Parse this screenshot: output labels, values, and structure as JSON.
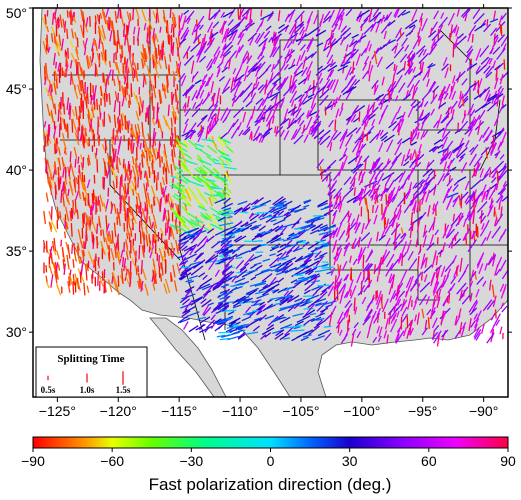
{
  "map": {
    "lon_range": [
      -127,
      -88
    ],
    "lat_range": [
      26,
      50
    ],
    "lon_ticks": [
      {
        "value": -125,
        "label": "−125°"
      },
      {
        "value": -120,
        "label": "−120°"
      },
      {
        "value": -115,
        "label": "−115°"
      },
      {
        "value": -110,
        "label": "−110°"
      },
      {
        "value": -105,
        "label": "−105°"
      },
      {
        "value": -100,
        "label": "−100°"
      },
      {
        "value": -95,
        "label": "−95°"
      },
      {
        "value": -90,
        "label": "−90°"
      }
    ],
    "lat_ticks": [
      {
        "value": 30,
        "label": "30°"
      },
      {
        "value": 35,
        "label": "35°"
      },
      {
        "value": 40,
        "label": "40°"
      },
      {
        "value": 45,
        "label": "45°"
      },
      {
        "value": 50,
        "label": "50°"
      }
    ],
    "colors": {
      "ocean": "#ffffff",
      "land": "#d8d8d8",
      "border": "#000000",
      "frame": "#000000"
    }
  },
  "legend": {
    "title": "Splitting Time",
    "items": [
      {
        "label": "0.5s",
        "value": 0.5
      },
      {
        "label": "1.0s",
        "value": 1.0
      },
      {
        "label": "1.5s",
        "value": 1.5
      }
    ]
  },
  "colorbar": {
    "title": "Fast polarization direction (deg.)",
    "range": [
      -90,
      90
    ],
    "ticks": [
      {
        "value": -90,
        "label": "−90"
      },
      {
        "value": -60,
        "label": "−60"
      },
      {
        "value": -30,
        "label": "−30"
      },
      {
        "value": 0,
        "label": "0"
      },
      {
        "value": 30,
        "label": "30"
      },
      {
        "value": 60,
        "label": "60"
      },
      {
        "value": 90,
        "label": "90"
      }
    ],
    "stops": [
      {
        "value": -90,
        "color": "#ff0000"
      },
      {
        "value": -70,
        "color": "#ff9900"
      },
      {
        "value": -60,
        "color": "#e8ff00"
      },
      {
        "value": -45,
        "color": "#66ff00"
      },
      {
        "value": -25,
        "color": "#00ff88"
      },
      {
        "value": 0,
        "color": "#00e0ff"
      },
      {
        "value": 15,
        "color": "#0066ff"
      },
      {
        "value": 30,
        "color": "#1a00cc"
      },
      {
        "value": 50,
        "color": "#8a00ff"
      },
      {
        "value": 70,
        "color": "#ee00ff"
      },
      {
        "value": 90,
        "color": "#ff0044"
      }
    ]
  }
}
